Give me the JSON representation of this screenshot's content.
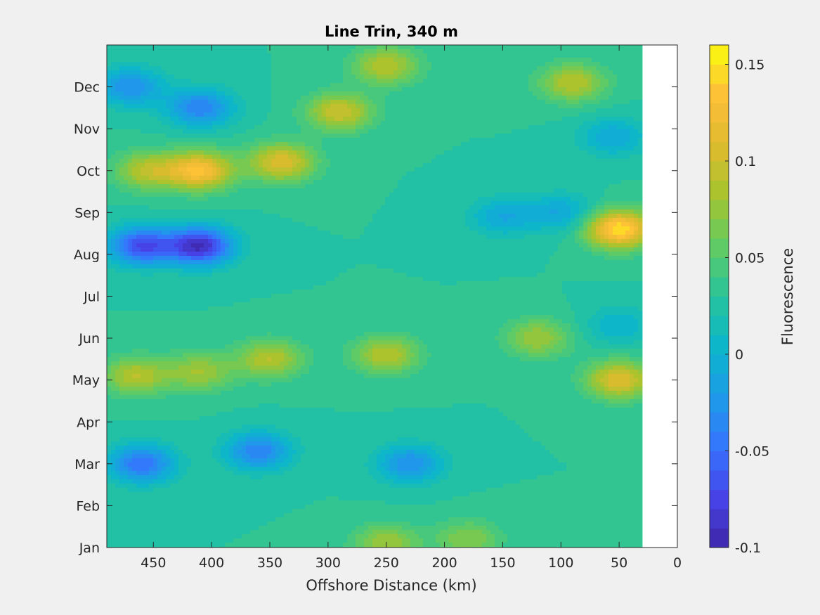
{
  "chart_data": {
    "type": "heatmap",
    "subtype": "filled-contour",
    "title": "Line Trin, 340 m",
    "xlabel": "Offshore Distance (km)",
    "ylabel": "",
    "xlim": [
      490,
      0
    ],
    "x_reversed": true,
    "x_ticks": [
      450,
      400,
      350,
      300,
      250,
      200,
      150,
      100,
      50,
      0
    ],
    "y_categories": [
      "Jan",
      "Feb",
      "Mar",
      "Apr",
      "May",
      "Jun",
      "Jul",
      "Aug",
      "Sep",
      "Oct",
      "Nov",
      "Dec"
    ],
    "y_range_months": [
      1,
      13
    ],
    "data_x_extent_km": [
      490,
      30
    ],
    "colorbar": {
      "label": "Fluorescence",
      "clim": [
        -0.1,
        0.16
      ],
      "levels": 26,
      "ticks": [
        -0.1,
        -0.05,
        0,
        0.05,
        0.1,
        0.15
      ],
      "tick_labels": [
        "-0.1",
        "-0.05",
        "0",
        "0.05",
        "0.1",
        "0.15"
      ],
      "colormap": "parula"
    },
    "features": [
      {
        "x": 460,
        "y": 8.2,
        "value": -0.07
      },
      {
        "x": 410,
        "y": 8.2,
        "value": -0.09
      },
      {
        "x": 410,
        "y": 10.0,
        "value": 0.13
      },
      {
        "x": 455,
        "y": 10.0,
        "value": 0.09
      },
      {
        "x": 340,
        "y": 10.2,
        "value": 0.11
      },
      {
        "x": 290,
        "y": 11.4,
        "value": 0.1
      },
      {
        "x": 410,
        "y": 11.5,
        "value": -0.04
      },
      {
        "x": 470,
        "y": 12.0,
        "value": -0.03
      },
      {
        "x": 250,
        "y": 12.5,
        "value": 0.09
      },
      {
        "x": 50,
        "y": 8.6,
        "value": 0.15
      },
      {
        "x": 50,
        "y": 5.0,
        "value": 0.11
      },
      {
        "x": 90,
        "y": 12.1,
        "value": 0.09
      },
      {
        "x": 55,
        "y": 10.8,
        "value": -0.01
      },
      {
        "x": 465,
        "y": 5.1,
        "value": 0.09
      },
      {
        "x": 410,
        "y": 5.2,
        "value": 0.08
      },
      {
        "x": 350,
        "y": 5.5,
        "value": 0.09
      },
      {
        "x": 250,
        "y": 5.6,
        "value": 0.09
      },
      {
        "x": 120,
        "y": 6.0,
        "value": 0.08
      },
      {
        "x": 460,
        "y": 3.0,
        "value": -0.05
      },
      {
        "x": 360,
        "y": 3.3,
        "value": -0.04
      },
      {
        "x": 230,
        "y": 3.0,
        "value": -0.03
      },
      {
        "x": 150,
        "y": 8.9,
        "value": -0.01
      },
      {
        "x": 100,
        "y": 9.0,
        "value": -0.01
      },
      {
        "x": 250,
        "y": 1.1,
        "value": 0.08
      },
      {
        "x": 180,
        "y": 1.2,
        "value": 0.07
      },
      {
        "x": 50,
        "y": 6.3,
        "value": 0.0
      }
    ]
  }
}
